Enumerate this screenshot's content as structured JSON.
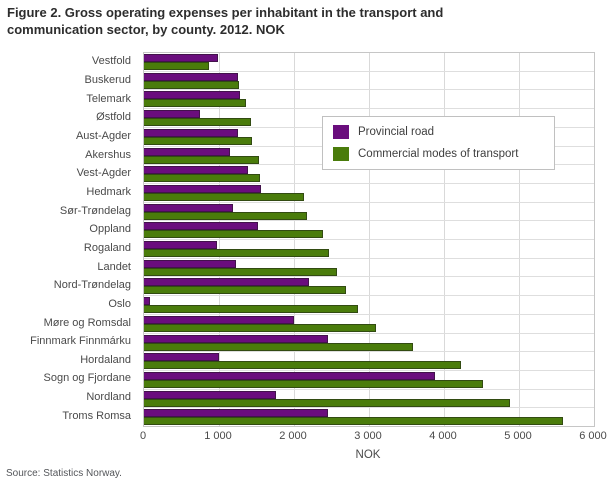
{
  "header": {
    "title": "Figure 2. Gross operating expenses per inhabitant in the transport and communication sector, by county. 2012. NOK"
  },
  "footer": {
    "source": "Source: Statistics Norway."
  },
  "colors": {
    "provincial_road": "#6A0D7D",
    "commercial_transport": "#4A7C0B",
    "gridline": "#d9d9d9",
    "plot_border": "#c6c6c6"
  },
  "chart_data": {
    "type": "bar",
    "orientation": "horizontal",
    "title": "Figure 2. Gross operating expenses per inhabitant in the transport and communication sector, by county. 2012. NOK",
    "xlabel": "NOK",
    "ylabel": "",
    "xlim": [
      0,
      6000
    ],
    "x_tick_values": [
      0,
      1000,
      2000,
      3000,
      4000,
      5000,
      6000
    ],
    "x_tick_labels": [
      "0",
      "1 000",
      "2 000",
      "3 000",
      "4 000",
      "5 000",
      "6 000"
    ],
    "grid": true,
    "legend_position": "upper-right-inside",
    "categories": [
      "Vestfold",
      "Buskerud",
      "Telemark",
      "Østfold",
      "Aust-Agder",
      "Akershus",
      "Vest-Agder",
      "Hedmark",
      "Sør-Trøndelag",
      "Oppland",
      "Rogaland",
      "Landet",
      "Nord-Trøndelag",
      "Oslo",
      "Møre og Romsdal",
      "Finnmark Finnmárku",
      "Hordaland",
      "Sogn og Fjordane",
      "Nordland",
      "Troms Romsa"
    ],
    "series": [
      {
        "name": "Provincial road",
        "color": "#6A0D7D",
        "values": [
          980,
          1250,
          1280,
          750,
          1250,
          1150,
          1390,
          1560,
          1190,
          1520,
          970,
          1230,
          2200,
          80,
          2000,
          2450,
          1000,
          3880,
          1760,
          2450
        ]
      },
      {
        "name": "Commercial modes of transport",
        "color": "#4A7C0B",
        "values": [
          870,
          1260,
          1360,
          1430,
          1440,
          1530,
          1550,
          2130,
          2170,
          2390,
          2470,
          2570,
          2690,
          2850,
          3090,
          3590,
          4230,
          4520,
          4880,
          5590
        ]
      }
    ]
  }
}
